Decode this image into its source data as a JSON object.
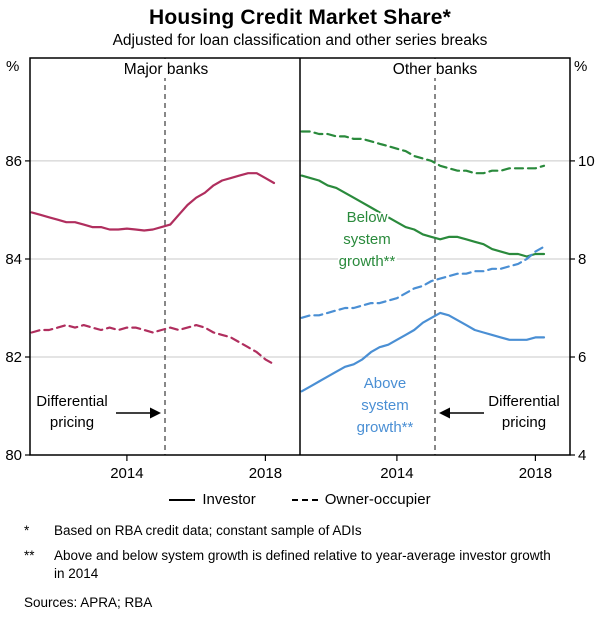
{
  "chart_data": {
    "type": "line",
    "title": "Housing Credit Market Share*",
    "subtitle": "Adjusted for loan classification and other series breaks",
    "left_unit": "%",
    "right_unit": "%",
    "x_range": [
      2011.2,
      2019.0
    ],
    "x_ticks": [
      {
        "value": 2014,
        "label": "2014"
      },
      {
        "value": 2018,
        "label": "2018"
      }
    ],
    "x": [
      2011.25,
      2011.5,
      2011.75,
      2012.0,
      2012.25,
      2012.5,
      2012.75,
      2013.0,
      2013.25,
      2013.5,
      2013.75,
      2014.0,
      2014.25,
      2014.5,
      2014.75,
      2015.0,
      2015.25,
      2015.5,
      2015.75,
      2016.0,
      2016.25,
      2016.5,
      2016.75,
      2017.0,
      2017.25,
      2017.5,
      2017.75,
      2018.0,
      2018.25
    ],
    "panels": [
      {
        "title": "Major banks",
        "axis": "left",
        "axis_range": [
          80,
          88.1
        ],
        "ticks": [
          80,
          82,
          84,
          86
        ],
        "ref_line_year": 2015.1,
        "series": [
          {
            "name": "Investor",
            "style": "solid",
            "color": "#b02e5e",
            "values": [
              84.95,
              84.9,
              84.85,
              84.8,
              84.75,
              84.75,
              84.7,
              84.65,
              84.65,
              84.6,
              84.6,
              84.62,
              84.6,
              84.58,
              84.6,
              84.65,
              84.7,
              84.9,
              85.1,
              85.25,
              85.35,
              85.5,
              85.6,
              85.65,
              85.7,
              85.75,
              85.75,
              85.65,
              85.55
            ]
          },
          {
            "name": "Owner-occupier",
            "style": "dashed",
            "color": "#b02e5e",
            "values": [
              82.5,
              82.55,
              82.55,
              82.6,
              82.65,
              82.6,
              82.65,
              82.6,
              82.55,
              82.6,
              82.55,
              82.6,
              82.6,
              82.55,
              82.5,
              82.55,
              82.6,
              82.55,
              82.6,
              82.65,
              82.6,
              82.5,
              82.45,
              82.4,
              82.3,
              82.2,
              82.1,
              81.95,
              81.85
            ]
          }
        ]
      },
      {
        "title": "Other banks",
        "axis": "right",
        "axis_range": [
          4,
          12.1
        ],
        "ticks": [
          4,
          6,
          8,
          10
        ],
        "ref_line_year": 2015.1,
        "series": [
          {
            "name": "Below system growth - Investor",
            "style": "solid",
            "color": "#2a8a3c",
            "values": [
              9.7,
              9.65,
              9.6,
              9.5,
              9.45,
              9.35,
              9.25,
              9.15,
              9.05,
              8.95,
              8.85,
              8.75,
              8.65,
              8.6,
              8.5,
              8.45,
              8.4,
              8.45,
              8.45,
              8.4,
              8.35,
              8.3,
              8.2,
              8.15,
              8.1,
              8.1,
              8.05,
              8.1,
              8.1
            ]
          },
          {
            "name": "Below system growth - Owner-occupier",
            "style": "dashed",
            "color": "#2a8a3c",
            "values": [
              10.6,
              10.6,
              10.55,
              10.55,
              10.5,
              10.5,
              10.45,
              10.45,
              10.4,
              10.35,
              10.3,
              10.25,
              10.2,
              10.1,
              10.05,
              10.0,
              9.9,
              9.85,
              9.8,
              9.8,
              9.75,
              9.75,
              9.8,
              9.8,
              9.85,
              9.85,
              9.85,
              9.85,
              9.9
            ]
          },
          {
            "name": "Above system growth - Investor",
            "style": "solid",
            "color": "#4a8fd4",
            "values": [
              5.3,
              5.4,
              5.5,
              5.6,
              5.7,
              5.8,
              5.85,
              5.95,
              6.1,
              6.2,
              6.25,
              6.35,
              6.45,
              6.55,
              6.7,
              6.8,
              6.9,
              6.85,
              6.75,
              6.65,
              6.55,
              6.5,
              6.45,
              6.4,
              6.35,
              6.35,
              6.35,
              6.4,
              6.4
            ]
          },
          {
            "name": "Above system growth - Owner-occupier",
            "style": "dashed",
            "color": "#4a8fd4",
            "values": [
              6.8,
              6.85,
              6.85,
              6.9,
              6.95,
              7.0,
              7.0,
              7.05,
              7.1,
              7.1,
              7.15,
              7.2,
              7.3,
              7.4,
              7.45,
              7.55,
              7.6,
              7.65,
              7.7,
              7.7,
              7.75,
              7.75,
              7.8,
              7.8,
              7.85,
              7.9,
              8.0,
              8.15,
              8.25
            ]
          }
        ]
      }
    ],
    "annotations": {
      "below_system": [
        "Below",
        "system",
        "growth**"
      ],
      "above_system": [
        "Above",
        "system",
        "growth**"
      ],
      "diff_pricing_left": [
        "Differential",
        "pricing"
      ],
      "diff_pricing_right": [
        "Differential",
        "pricing"
      ]
    },
    "legend": [
      {
        "label": "Investor",
        "style": "solid"
      },
      {
        "label": "Owner-occupier",
        "style": "dashed"
      }
    ],
    "colors": {
      "crimson": "#b02e5e",
      "green": "#2a8a3c",
      "blue": "#4a8fd4",
      "grid": "#c9c9c9"
    }
  },
  "footnotes": [
    {
      "marker": "*",
      "text": "Based on RBA credit data; constant sample of ADIs"
    },
    {
      "marker": "**",
      "text": "Above and below system growth is defined relative to year-average investor growth in 2014"
    }
  ],
  "sources": "Sources: APRA; RBA"
}
